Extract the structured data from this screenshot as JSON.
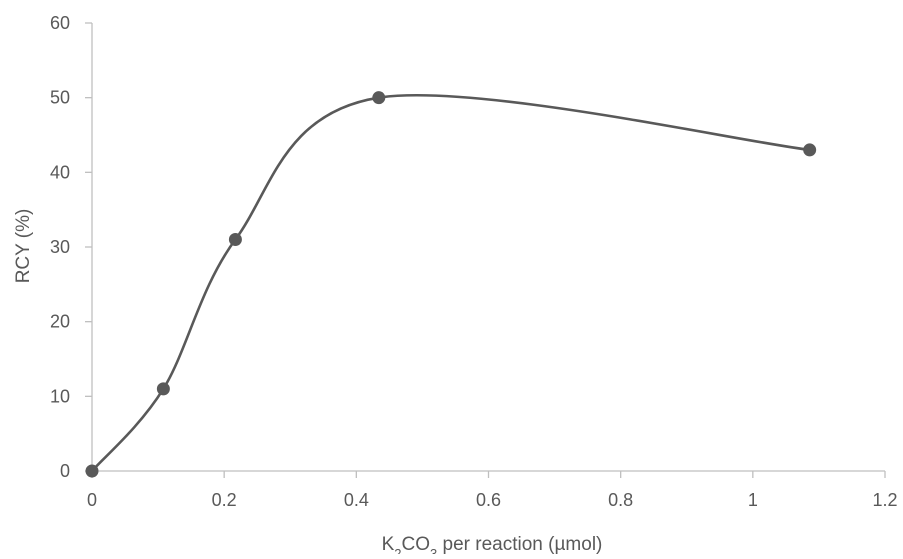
{
  "chart_data": {
    "type": "scatter",
    "smooth": true,
    "title": "",
    "xlabel": {
      "prefix": "K",
      "sub1": "2",
      "mid": "CO",
      "sub2": "3",
      "suffix": " per reaction (µmol)"
    },
    "ylabel": "RCY (%)",
    "xlim": [
      0,
      1.2
    ],
    "ylim": [
      0,
      60
    ],
    "x_ticks": [
      {
        "value": 0,
        "label": "0"
      },
      {
        "value": 0.2,
        "label": "0.2"
      },
      {
        "value": 0.4,
        "label": "0.4"
      },
      {
        "value": 0.6,
        "label": "0.6"
      },
      {
        "value": 0.8,
        "label": "0.8"
      },
      {
        "value": 1.0,
        "label": "1"
      },
      {
        "value": 1.2,
        "label": "1.2"
      }
    ],
    "y_ticks": [
      {
        "value": 0,
        "label": "0"
      },
      {
        "value": 10,
        "label": "10"
      },
      {
        "value": 20,
        "label": "20"
      },
      {
        "value": 30,
        "label": "30"
      },
      {
        "value": 40,
        "label": "40"
      },
      {
        "value": 50,
        "label": "50"
      },
      {
        "value": 60,
        "label": "60"
      }
    ],
    "grid": false,
    "legend": "none",
    "series": [
      {
        "x": [
          0,
          0.108,
          0.217,
          0.434,
          1.086
        ],
        "y": [
          0,
          11,
          31,
          50,
          43
        ]
      }
    ],
    "colors": {
      "series": "#595959",
      "axis": "#bfbfbf",
      "text": "#595959"
    }
  }
}
